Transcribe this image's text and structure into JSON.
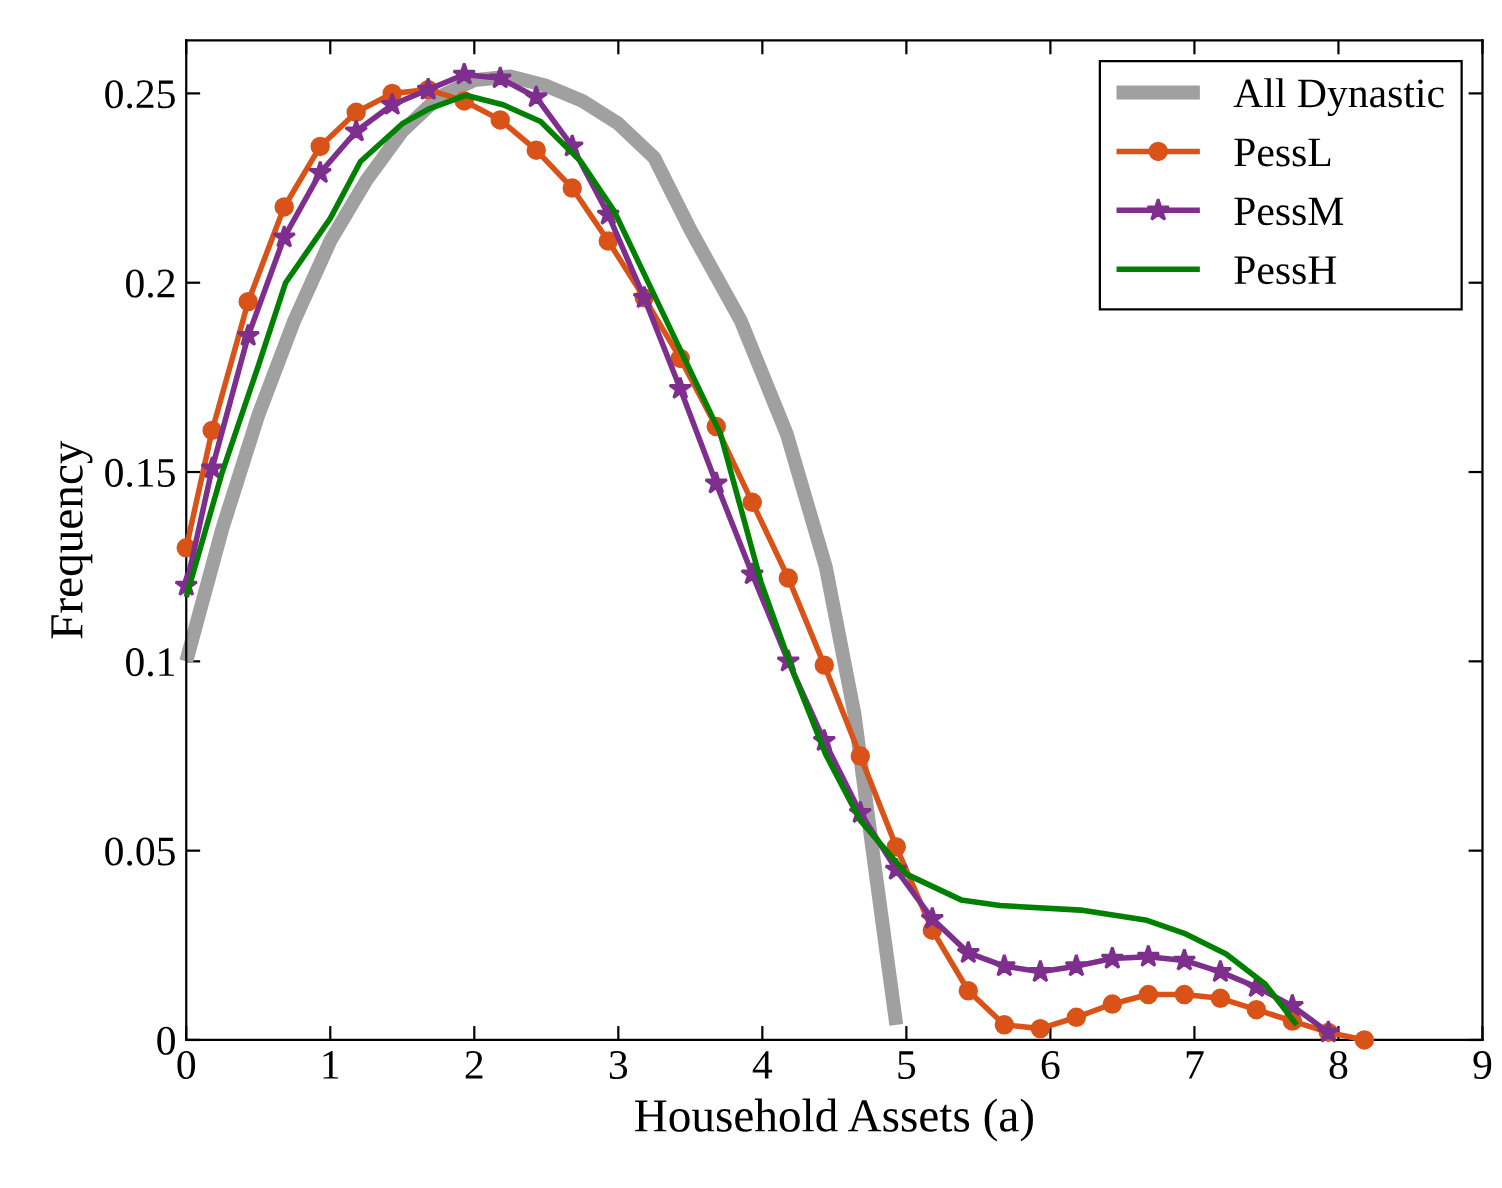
{
  "chart_data": {
    "type": "line",
    "xlabel": "Household Assets (a)",
    "ylabel": "Frequency",
    "xlim": [
      0,
      9
    ],
    "xticks": [
      0,
      1,
      2,
      3,
      4,
      5,
      6,
      7,
      8,
      9
    ],
    "ylim": [
      0,
      0.264
    ],
    "yticks": [
      0,
      0.05,
      {
        "value": 0.1,
        "label": "0.1"
      },
      0.15,
      {
        "value": 0.2,
        "label": "0.2"
      },
      0.25
    ],
    "grid": false,
    "legend": "top right",
    "series": [
      {
        "name": "All Dynastic",
        "color": "#a0a0a0",
        "marker": "none",
        "x": [
          0,
          0.25,
          0.5,
          0.75,
          1,
          1.25,
          1.5,
          1.75,
          2,
          2.25,
          2.5,
          2.75,
          3,
          3.25,
          3.5,
          3.85,
          4.17,
          4.44,
          4.64,
          4.78,
          4.93
        ],
        "values": [
          0.1,
          0.135,
          0.165,
          0.19,
          0.211,
          0.227,
          0.24,
          0.249,
          0.2535,
          0.2545,
          0.252,
          0.248,
          0.242,
          0.233,
          0.214,
          0.19,
          0.16,
          0.125,
          0.086,
          0.046,
          0.004
        ]
      },
      {
        "name": "PessL",
        "color": "#d95319",
        "marker": "circle",
        "x": [
          0,
          0.18,
          0.43,
          0.68,
          0.93,
          1.18,
          1.43,
          1.68,
          1.93,
          2.18,
          2.43,
          2.68,
          2.93,
          3.18,
          3.43,
          3.68,
          3.93,
          4.18,
          4.43,
          4.68,
          4.93,
          5.18,
          5.43,
          5.68,
          5.93,
          6.18,
          6.43,
          6.68,
          6.93,
          7.18,
          7.43,
          7.68,
          7.93,
          8.18
        ],
        "values": [
          0.13,
          0.161,
          0.195,
          0.22,
          0.236,
          0.245,
          0.25,
          0.251,
          0.248,
          0.243,
          0.235,
          0.225,
          0.211,
          0.196,
          0.18,
          0.162,
          0.142,
          0.122,
          0.099,
          0.075,
          0.051,
          0.029,
          0.013,
          0.004,
          0.003,
          0.006,
          0.0095,
          0.012,
          0.012,
          0.011,
          0.008,
          0.005,
          0.002,
          0.0
        ]
      },
      {
        "name": "PessM",
        "color": "#7e2f8e",
        "marker": "star",
        "x": [
          0,
          0.18,
          0.43,
          0.68,
          0.93,
          1.18,
          1.43,
          1.68,
          1.93,
          2.18,
          2.43,
          2.68,
          2.93,
          3.18,
          3.43,
          3.68,
          3.93,
          4.18,
          4.43,
          4.68,
          4.93,
          5.18,
          5.43,
          5.68,
          5.93,
          6.18,
          6.43,
          6.68,
          6.93,
          7.18,
          7.43,
          7.68,
          7.93
        ],
        "values": [
          0.12,
          0.151,
          0.186,
          0.212,
          0.229,
          0.24,
          0.247,
          0.251,
          0.255,
          0.254,
          0.249,
          0.236,
          0.218,
          0.196,
          0.172,
          0.147,
          0.123,
          0.1,
          0.079,
          0.06,
          0.045,
          0.032,
          0.023,
          0.0195,
          0.018,
          0.0195,
          0.0215,
          0.022,
          0.021,
          0.018,
          0.014,
          0.009,
          0.002
        ]
      },
      {
        "name": "PessH",
        "color": "#008000",
        "marker": "none",
        "x": [
          0,
          0.25,
          0.5,
          0.69,
          1.0,
          1.21,
          1.5,
          1.69,
          1.94,
          2.2,
          2.46,
          2.74,
          2.97,
          3.29,
          3.71,
          3.99,
          4.22,
          4.44,
          4.68,
          5.0,
          5.38,
          5.65,
          6.21,
          6.67,
          6.94,
          7.22,
          7.49,
          7.71
        ],
        "values": [
          0.117,
          0.15,
          0.178,
          0.2,
          0.217,
          0.232,
          0.242,
          0.246,
          0.2495,
          0.247,
          0.2426,
          0.232,
          0.219,
          0.1935,
          0.16,
          0.121,
          0.0965,
          0.0754,
          0.058,
          0.0438,
          0.037,
          0.0355,
          0.0343,
          0.0316,
          0.028,
          0.0227,
          0.0148,
          0.004
        ]
      }
    ]
  }
}
